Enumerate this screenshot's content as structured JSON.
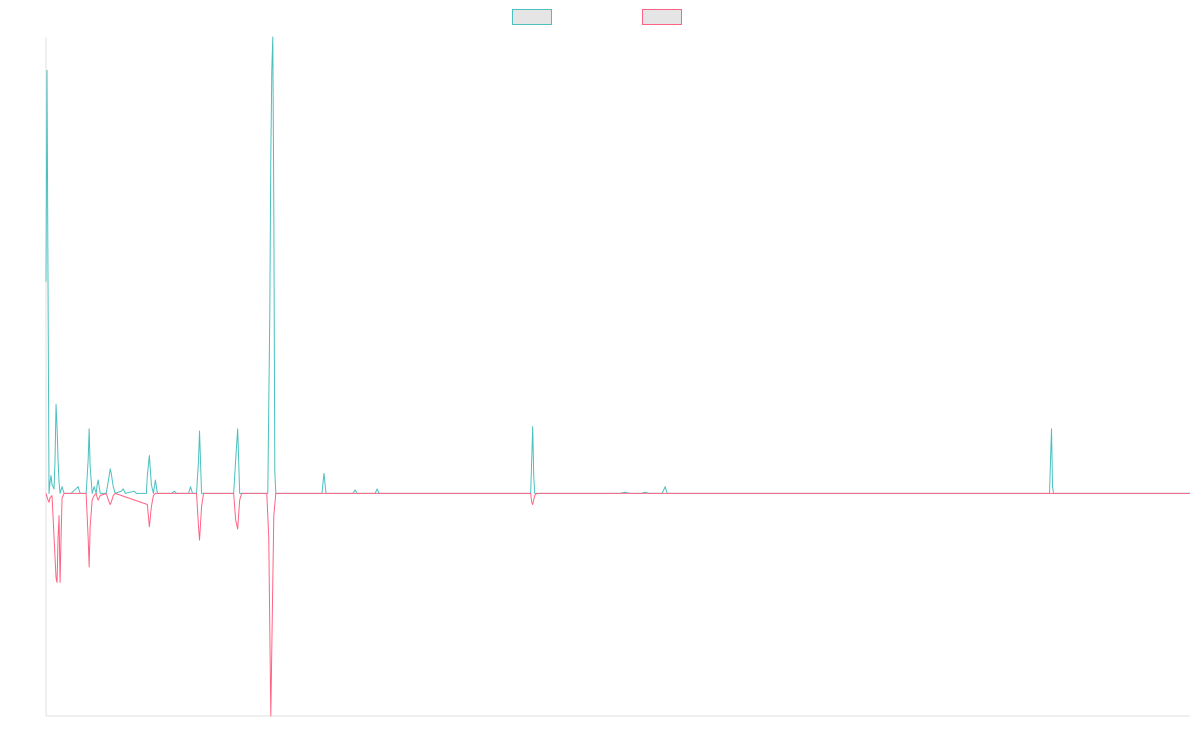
{
  "chart_data": {
    "type": "line",
    "title": "",
    "xlabel": "",
    "ylabel": "",
    "grid": false,
    "legend_position": "top-center",
    "xlim": [
      0,
      1140
    ],
    "ylim": [
      -100,
      205
    ],
    "series": [
      {
        "color": "#4bc0c0",
        "points": [
          [
            0,
            95
          ],
          [
            1,
            190
          ],
          [
            2,
            95
          ],
          [
            3,
            0
          ],
          [
            4,
            5
          ],
          [
            5,
            8
          ],
          [
            6,
            4
          ],
          [
            8,
            2
          ],
          [
            9,
            15
          ],
          [
            10,
            40
          ],
          [
            11,
            30
          ],
          [
            12,
            15
          ],
          [
            13,
            5
          ],
          [
            14,
            0
          ],
          [
            16,
            3
          ],
          [
            18,
            0
          ],
          [
            25,
            0
          ],
          [
            32,
            3
          ],
          [
            34,
            0
          ],
          [
            40,
            0
          ],
          [
            42,
            15
          ],
          [
            43,
            29
          ],
          [
            44,
            12
          ],
          [
            46,
            0
          ],
          [
            48,
            3
          ],
          [
            50,
            0
          ],
          [
            51,
            4
          ],
          [
            52,
            6
          ],
          [
            54,
            0
          ],
          [
            60,
            0
          ],
          [
            63,
            8
          ],
          [
            64,
            11
          ],
          [
            65,
            9
          ],
          [
            67,
            3
          ],
          [
            69,
            0
          ],
          [
            75,
            1
          ],
          [
            77,
            2
          ],
          [
            79,
            0
          ],
          [
            88,
            1
          ],
          [
            90,
            0
          ],
          [
            100,
            0
          ],
          [
            101,
            8
          ],
          [
            103,
            17
          ],
          [
            105,
            4
          ],
          [
            107,
            0
          ],
          [
            109,
            6
          ],
          [
            111,
            0
          ],
          [
            125,
            0
          ],
          [
            128,
            1
          ],
          [
            130,
            0
          ],
          [
            142,
            0
          ],
          [
            144,
            3
          ],
          [
            146,
            0
          ],
          [
            150,
            0
          ],
          [
            152,
            15
          ],
          [
            153,
            28
          ],
          [
            155,
            0
          ],
          [
            187,
            0
          ],
          [
            189,
            15
          ],
          [
            191,
            29
          ],
          [
            193,
            0
          ],
          [
            221,
            0
          ],
          [
            223,
            80
          ],
          [
            224,
            150
          ],
          [
            225,
            190
          ],
          [
            226,
            205
          ],
          [
            227,
            130
          ],
          [
            228,
            10
          ],
          [
            229,
            0
          ],
          [
            275,
            0
          ],
          [
            277,
            9
          ],
          [
            279,
            0
          ],
          [
            306,
            0
          ],
          [
            308,
            1.5
          ],
          [
            310,
            0
          ],
          [
            328,
            0
          ],
          [
            330,
            2
          ],
          [
            332,
            0
          ],
          [
            483,
            0
          ],
          [
            484,
            15
          ],
          [
            485,
            30
          ],
          [
            486,
            8
          ],
          [
            487,
            0
          ],
          [
            572,
            0
          ],
          [
            577,
            0.5
          ],
          [
            582,
            0
          ],
          [
            593,
            0
          ],
          [
            597,
            0.5
          ],
          [
            601,
            0
          ],
          [
            614,
            0
          ],
          [
            617,
            3
          ],
          [
            619,
            0
          ],
          [
            1000,
            0
          ],
          [
            1001,
            15
          ],
          [
            1002,
            29
          ],
          [
            1003,
            3
          ],
          [
            1004,
            0
          ],
          [
            1140,
            0
          ]
        ]
      },
      {
        "color": "#ff6384",
        "points": [
          [
            0,
            0
          ],
          [
            2,
            -3
          ],
          [
            3,
            -4
          ],
          [
            4,
            -2
          ],
          [
            6,
            -1
          ],
          [
            10,
            -38
          ],
          [
            11,
            -40
          ],
          [
            12,
            -20
          ],
          [
            13,
            -10
          ],
          [
            14,
            -40
          ],
          [
            15,
            -20
          ],
          [
            16,
            -2
          ],
          [
            18,
            0
          ],
          [
            40,
            0
          ],
          [
            42,
            -20
          ],
          [
            43,
            -33
          ],
          [
            44,
            -15
          ],
          [
            46,
            -3
          ],
          [
            48,
            -1
          ],
          [
            50,
            0
          ],
          [
            51,
            -2
          ],
          [
            52,
            -3
          ],
          [
            54,
            -1
          ],
          [
            60,
            0
          ],
          [
            63,
            -4
          ],
          [
            64,
            -5
          ],
          [
            65,
            -4
          ],
          [
            67,
            -1
          ],
          [
            69,
            0
          ],
          [
            101,
            -5
          ],
          [
            103,
            -15
          ],
          [
            105,
            -6
          ],
          [
            107,
            -1
          ],
          [
            109,
            0
          ],
          [
            150,
            0
          ],
          [
            152,
            -15
          ],
          [
            153,
            -21
          ],
          [
            155,
            -6
          ],
          [
            157,
            0
          ],
          [
            187,
            0
          ],
          [
            189,
            -12
          ],
          [
            191,
            -16
          ],
          [
            193,
            -3
          ],
          [
            195,
            0
          ],
          [
            220,
            0
          ],
          [
            222,
            -20
          ],
          [
            224,
            -100
          ],
          [
            225,
            -70
          ],
          [
            227,
            -10
          ],
          [
            229,
            0
          ],
          [
            483,
            0
          ],
          [
            484,
            -4
          ],
          [
            485,
            -5
          ],
          [
            487,
            -1
          ],
          [
            489,
            0
          ],
          [
            1140,
            0
          ]
        ]
      }
    ]
  }
}
